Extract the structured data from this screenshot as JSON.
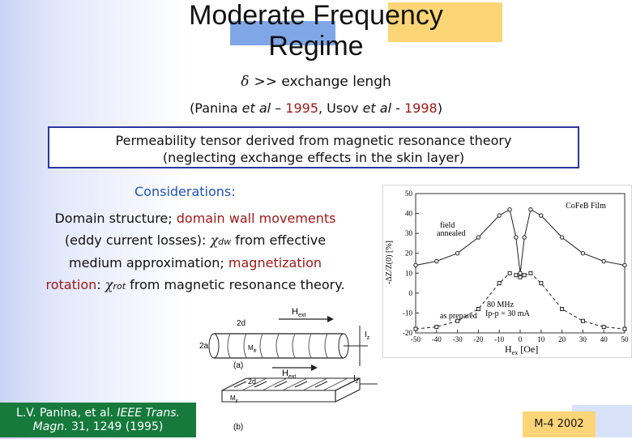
{
  "title_line1": "Moderate Frequency",
  "title_line2": "Regime",
  "condition": {
    "symbol": "δ",
    "text": ">> exchange lengh"
  },
  "references": {
    "open": "(Panina ",
    "et_al_1": "et al",
    "dash1": " – ",
    "year1": "1995",
    "comma": ", Usov ",
    "et_al_2": "et al",
    "dash2": " - ",
    "year2": "1998",
    "close": ")"
  },
  "box": {
    "line1": "Permeability tensor derived from magnetic resonance theory",
    "line2": "(neglecting exchange effects in the skin layer)"
  },
  "considerations": "Considerations:",
  "paragraph": {
    "p1": "Domain structure; ",
    "p2": "domain wall movements",
    "p3": "(eddy current losses): ",
    "chi": "χ",
    "dw": "dw",
    "p4": " from effective",
    "p5": "medium approximation; ",
    "p6": "magnetization",
    "p7": "rotation",
    "p8": ": ",
    "rot": "rot",
    "p9": " from magnetic resonance theory."
  },
  "chart": {
    "ylabel": "-ΔZ/Z(0) [%]",
    "xlabel": "H",
    "xlabel_sub": "ex",
    "xlabel_unit": " [Oe]",
    "legend_title": "CoFeB Film",
    "label_field": "field",
    "label_annealed": "annealed",
    "label_freq": "80 MHz",
    "label_ip": "Ip-p = 30 mA",
    "label_prepared": "as prepared"
  },
  "chart_data": {
    "type": "line",
    "x": [
      -50,
      -40,
      -30,
      -20,
      -10,
      -5,
      -2,
      0,
      2,
      5,
      10,
      20,
      30,
      40,
      50
    ],
    "series": [
      {
        "name": "field annealed",
        "values": [
          14,
          16,
          20,
          28,
          39,
          42,
          28,
          10,
          28,
          42,
          39,
          28,
          20,
          16,
          14
        ]
      },
      {
        "name": "as prepared",
        "values": [
          -18,
          -17,
          -14,
          -8,
          5,
          10,
          9,
          8,
          9,
          10,
          5,
          -8,
          -14,
          -17,
          -18
        ]
      }
    ],
    "yticks": [
      "50",
      "40",
      "30",
      "20",
      "10",
      "0",
      "-10",
      "-20"
    ],
    "xticks": [
      "-50",
      "-40",
      "-30",
      "-20",
      "-10",
      "0",
      "10",
      "20",
      "30",
      "40",
      "50"
    ],
    "ylim": [
      -20,
      50
    ],
    "xlim": [
      -50,
      50
    ]
  },
  "diagram": {
    "h_label": "H",
    "h_sub": "ext",
    "d_label": "2d",
    "a_label": "2a",
    "iz": "I",
    "iz_sub": "z",
    "m_label": "M",
    "m_sub": "φ",
    "my_label": "M",
    "my_sub": "y",
    "caption_a": "(a)",
    "caption_b": "(b)"
  },
  "citation": {
    "line1_a": "L.V. Panina, et al. ",
    "line1_b": "IEEE Trans.",
    "line2_a": "Magn.",
    "line2_b": " 31, 1249 (1995)"
  },
  "slide_tag": "M-4 2002"
}
